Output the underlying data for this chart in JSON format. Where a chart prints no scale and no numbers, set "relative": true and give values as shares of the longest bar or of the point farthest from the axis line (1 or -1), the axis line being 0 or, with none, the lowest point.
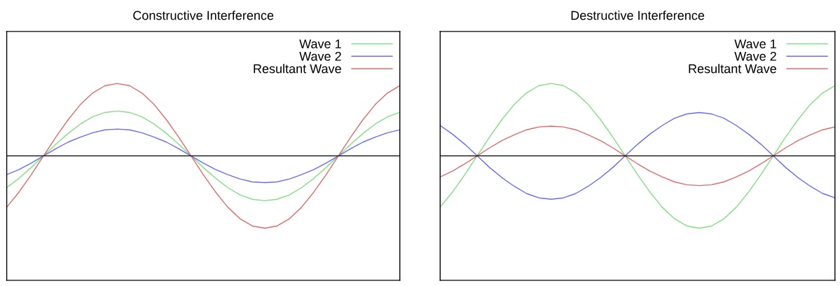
{
  "chart_data": [
    {
      "type": "line",
      "title": "Constructive Interference",
      "relative": true,
      "legend": "top right",
      "categories": [
        null,
        null,
        null,
        null,
        null,
        null,
        null,
        null,
        null,
        null,
        null,
        null,
        null,
        null,
        null,
        null,
        null,
        null,
        null,
        null,
        null,
        null,
        null,
        null,
        null,
        null,
        null,
        null,
        null,
        null,
        null,
        null,
        null
      ],
      "series": [
        {
          "name": "Wave 1",
          "color": "#80e080",
          "values": [
            -0.44,
            -0.31,
            -0.16,
            0,
            0.16,
            0.31,
            0.44,
            0.54,
            0.6,
            0.62,
            0.6,
            0.54,
            0.44,
            0.31,
            0.16,
            0,
            -0.16,
            -0.31,
            -0.44,
            -0.54,
            -0.6,
            -0.62,
            -0.6,
            -0.54,
            -0.44,
            -0.31,
            -0.16,
            0,
            0.16,
            0.31,
            0.44,
            0.54,
            0.6
          ]
        },
        {
          "name": "Wave 2",
          "color": "#6a6aff",
          "values": [
            -0.26,
            -0.19,
            -0.1,
            0,
            0.1,
            0.19,
            0.26,
            0.32,
            0.36,
            0.37,
            0.36,
            0.32,
            0.26,
            0.19,
            0.1,
            0,
            -0.1,
            -0.19,
            -0.26,
            -0.32,
            -0.36,
            -0.37,
            -0.36,
            -0.32,
            -0.26,
            -0.19,
            -0.1,
            0,
            0.1,
            0.19,
            0.26,
            0.32,
            0.36
          ]
        },
        {
          "name": "Resultant Wave",
          "color": "#e06a6a",
          "values": [
            -0.71,
            -0.5,
            -0.26,
            0,
            0.26,
            0.5,
            0.71,
            0.87,
            0.97,
            1,
            0.97,
            0.87,
            0.71,
            0.5,
            0.26,
            0,
            -0.26,
            -0.5,
            -0.71,
            -0.87,
            -0.97,
            -1,
            -0.97,
            -0.87,
            -0.71,
            -0.5,
            -0.26,
            0,
            0.26,
            0.5,
            0.71,
            0.87,
            0.97
          ]
        }
      ]
    },
    {
      "type": "line",
      "title": "Destructive Interference",
      "relative": true,
      "legend": "top right",
      "categories": [
        null,
        null,
        null,
        null,
        null,
        null,
        null,
        null,
        null,
        null,
        null,
        null,
        null,
        null,
        null,
        null,
        null,
        null,
        null,
        null,
        null,
        null,
        null,
        null,
        null,
        null,
        null,
        null,
        null,
        null,
        null,
        null,
        null
      ],
      "series": [
        {
          "name": "Wave 1",
          "color": "#80e080",
          "values": [
            -0.71,
            -0.5,
            -0.26,
            0,
            0.26,
            0.5,
            0.71,
            0.87,
            0.97,
            1,
            0.97,
            0.87,
            0.71,
            0.5,
            0.26,
            0,
            -0.26,
            -0.5,
            -0.71,
            -0.87,
            -0.97,
            -1,
            -0.97,
            -0.87,
            -0.71,
            -0.5,
            -0.26,
            0,
            0.26,
            0.5,
            0.71,
            0.87,
            0.97
          ]
        },
        {
          "name": "Wave 2",
          "color": "#6a6aff",
          "values": [
            0.42,
            0.3,
            0.16,
            0,
            -0.16,
            -0.3,
            -0.42,
            -0.52,
            -0.58,
            -0.6,
            -0.58,
            -0.52,
            -0.42,
            -0.3,
            -0.16,
            0,
            0.16,
            0.3,
            0.42,
            0.52,
            0.58,
            0.6,
            0.58,
            0.52,
            0.42,
            0.3,
            0.16,
            0,
            -0.16,
            -0.3,
            -0.42,
            -0.52,
            -0.58
          ]
        },
        {
          "name": "Resultant Wave",
          "color": "#e06a6a",
          "values": [
            -0.29,
            -0.21,
            -0.11,
            0,
            0.11,
            0.21,
            0.29,
            0.36,
            0.4,
            0.41,
            0.4,
            0.36,
            0.29,
            0.21,
            0.11,
            0,
            -0.11,
            -0.21,
            -0.29,
            -0.36,
            -0.4,
            -0.41,
            -0.4,
            -0.36,
            -0.29,
            -0.21,
            -0.11,
            0,
            0.11,
            0.21,
            0.29,
            0.36,
            0.4
          ]
        }
      ]
    }
  ]
}
